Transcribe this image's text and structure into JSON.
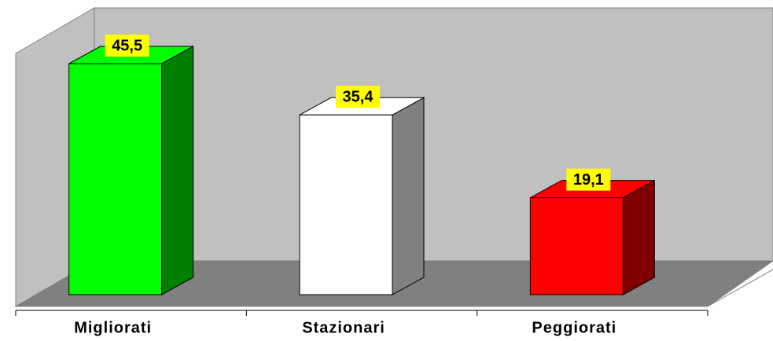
{
  "chart_data": {
    "type": "bar3d",
    "categories": [
      "Migliorati",
      "Stazionari",
      "Peggiorati"
    ],
    "values": [
      45.5,
      35.4,
      19.1
    ],
    "value_labels": [
      "45,5",
      "35,4",
      "19,1"
    ],
    "colors": [
      "#00ff00",
      "#ffffff",
      "#ff0000"
    ]
  }
}
